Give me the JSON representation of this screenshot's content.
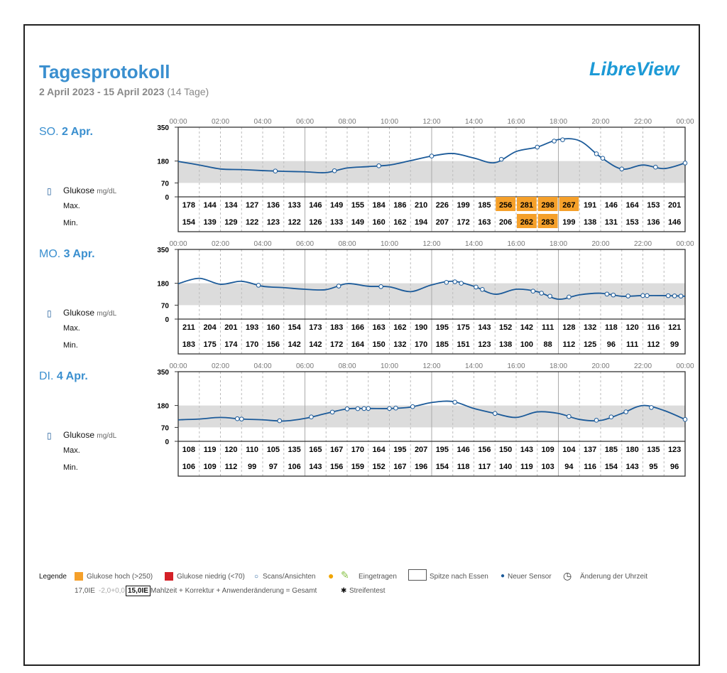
{
  "header": {
    "title": "Tagesprotokoll",
    "date_range": "2 April 2023 - 15 April 2023",
    "days_count": "(14 Tage)",
    "logo": "LibreView"
  },
  "labels": {
    "glucose": "Glukose",
    "unit": "mg/dL",
    "max": "Max.",
    "min": "Min."
  },
  "chart_data": [
    {
      "type": "line",
      "day_prefix": "SO.",
      "day": "2 Apr.",
      "ylim": [
        0,
        350
      ],
      "yticks": [
        0,
        70,
        180,
        350
      ],
      "target_range": [
        70,
        180
      ],
      "xticks": [
        "00:00",
        "02:00",
        "04:00",
        "06:00",
        "08:00",
        "10:00",
        "12:00",
        "14:00",
        "16:00",
        "18:00",
        "20:00",
        "22:00",
        "00:00"
      ],
      "curve": [
        178,
        160,
        140,
        137,
        132,
        128,
        126,
        122,
        145,
        152,
        160,
        182,
        205,
        218,
        195,
        172,
        228,
        250,
        288,
        282,
        200,
        140,
        160,
        142,
        170
      ],
      "scans": [
        4.6,
        7.4,
        9.5,
        12,
        15.3,
        17,
        17.8,
        18.2,
        19.8,
        20.1,
        21,
        22.6,
        24
      ],
      "max": [
        178,
        144,
        134,
        127,
        136,
        133,
        146,
        149,
        155,
        184,
        186,
        210,
        226,
        199,
        185,
        256,
        281,
        298,
        267,
        191,
        146,
        164,
        153,
        201
      ],
      "min": [
        154,
        139,
        129,
        122,
        123,
        122,
        126,
        133,
        149,
        160,
        162,
        194,
        207,
        172,
        163,
        206,
        262,
        283,
        199,
        138,
        131,
        153,
        136,
        146
      ]
    },
    {
      "type": "line",
      "day_prefix": "MO.",
      "day": "3 Apr.",
      "ylim": [
        0,
        350
      ],
      "yticks": [
        0,
        70,
        180,
        350
      ],
      "target_range": [
        70,
        180
      ],
      "xticks": [
        "00:00",
        "02:00",
        "04:00",
        "06:00",
        "08:00",
        "10:00",
        "12:00",
        "14:00",
        "16:00",
        "18:00",
        "20:00",
        "22:00",
        "00:00"
      ],
      "curve": [
        178,
        205,
        175,
        190,
        165,
        158,
        150,
        148,
        178,
        165,
        162,
        138,
        172,
        190,
        165,
        125,
        150,
        138,
        100,
        122,
        130,
        115,
        118,
        118,
        115
      ],
      "scans": [
        3.8,
        7.6,
        9.6,
        12.7,
        13.1,
        13.4,
        14.1,
        14.4,
        16.8,
        17.2,
        17.6,
        18.5,
        20.3,
        20.6,
        21.3,
        22,
        22.2,
        23.2,
        23.5,
        23.8
      ],
      "max": [
        211,
        204,
        201,
        193,
        160,
        154,
        173,
        183,
        166,
        163,
        162,
        190,
        195,
        175,
        143,
        152,
        142,
        111,
        128,
        132,
        118,
        120,
        116,
        121
      ],
      "min": [
        183,
        175,
        174,
        170,
        156,
        142,
        142,
        172,
        164,
        150,
        132,
        170,
        185,
        151,
        123,
        138,
        100,
        88,
        112,
        125,
        96,
        111,
        112,
        99
      ]
    },
    {
      "type": "line",
      "day_prefix": "DI.",
      "day": "4 Apr.",
      "ylim": [
        0,
        350
      ],
      "yticks": [
        0,
        70,
        180,
        350
      ],
      "target_range": [
        70,
        180
      ],
      "xticks": [
        "00:00",
        "02:00",
        "04:00",
        "06:00",
        "08:00",
        "10:00",
        "12:00",
        "14:00",
        "16:00",
        "18:00",
        "20:00",
        "22:00",
        "00:00"
      ],
      "curve": [
        108,
        112,
        120,
        112,
        108,
        102,
        115,
        140,
        163,
        165,
        165,
        172,
        195,
        200,
        165,
        140,
        120,
        148,
        140,
        110,
        105,
        140,
        180,
        155,
        110
      ],
      "scans": [
        2.8,
        3,
        4.8,
        6.3,
        7.3,
        8,
        8.5,
        8.8,
        9,
        10,
        10.3,
        11.1,
        13.1,
        15,
        18.5,
        19.8,
        20.5,
        21.2,
        22.4,
        24
      ],
      "max": [
        108,
        119,
        120,
        110,
        105,
        135,
        165,
        167,
        170,
        164,
        195,
        207,
        195,
        146,
        156,
        150,
        143,
        109,
        104,
        137,
        185,
        180,
        135,
        123
      ],
      "min": [
        106,
        109,
        112,
        99,
        97,
        106,
        143,
        156,
        159,
        152,
        167,
        196,
        154,
        118,
        117,
        140,
        119,
        103,
        94,
        116,
        154,
        143,
        95,
        96
      ]
    }
  ],
  "legend": {
    "title": "Legende",
    "high": "Glukose hoch (>250)",
    "low": "Glukose niedrig (<70)",
    "scans": "Scans/Ansichten",
    "entered": "Eingetragen",
    "peak": "Spitze nach Essen",
    "sensor": "Neuer Sensor",
    "time_change": "Änderung der Uhrzeit",
    "dose_example": "17,0IE",
    "dose_corr": "-2,0+0,0",
    "dose_total": "15,0IE",
    "dose_desc": "Mahlzeit + Korrektur + Anwenderänderung = Gesamt",
    "strip": "Streifentest",
    "colors": {
      "high": "#f5a02a",
      "low": "#d42027",
      "line": "#1b5a99",
      "band": "#dcdcdc",
      "accent": "#3a8fcf"
    }
  }
}
